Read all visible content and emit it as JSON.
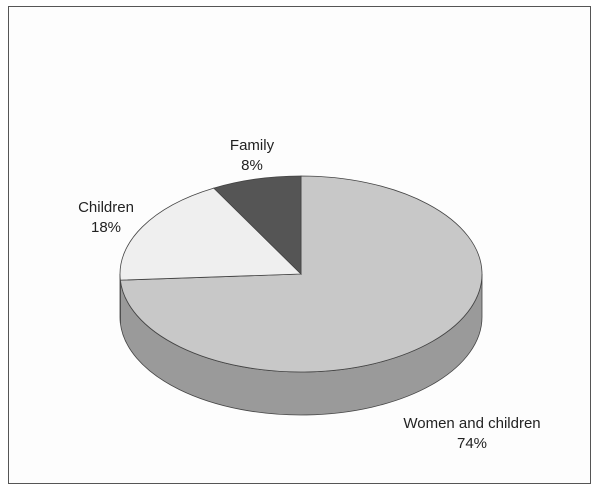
{
  "chart_data": {
    "type": "pie",
    "title": "",
    "slices": [
      {
        "label": "Women and children",
        "value": 74,
        "value_label": "74%",
        "color": "#c8c8c8",
        "side_color": "#9a9a9a"
      },
      {
        "label": "Children",
        "value": 18,
        "value_label": "18%",
        "color": "#efefef",
        "side_color": "#d4d4d4"
      },
      {
        "label": "Family",
        "value": 8,
        "value_label": "8%",
        "color": "#555555",
        "side_color": "#333333"
      }
    ],
    "style": "3d",
    "legend": "none",
    "start": "12 o'clock, clockwise"
  }
}
